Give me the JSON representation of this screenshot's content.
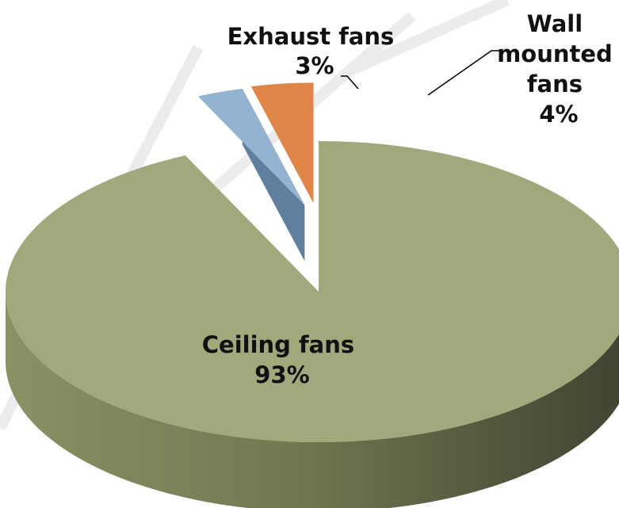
{
  "chart_data": {
    "type": "pie",
    "style": "3d-exploded",
    "slices": [
      {
        "label_lines": [
          "Ceiling fans"
        ],
        "pct_label": "93%",
        "value": 93,
        "color": "#a3a87c",
        "side_color": "#6e7450"
      },
      {
        "label_lines": [
          "Exhaust fans"
        ],
        "pct_label": "3%",
        "value": 3,
        "color": "#93b3d0",
        "side_color": "#5f7f9c"
      },
      {
        "label_lines": [
          "Wall",
          "mounted",
          "fans"
        ],
        "pct_label": "4%",
        "value": 4,
        "color": "#de8547",
        "side_color": "#a95a25"
      }
    ]
  }
}
